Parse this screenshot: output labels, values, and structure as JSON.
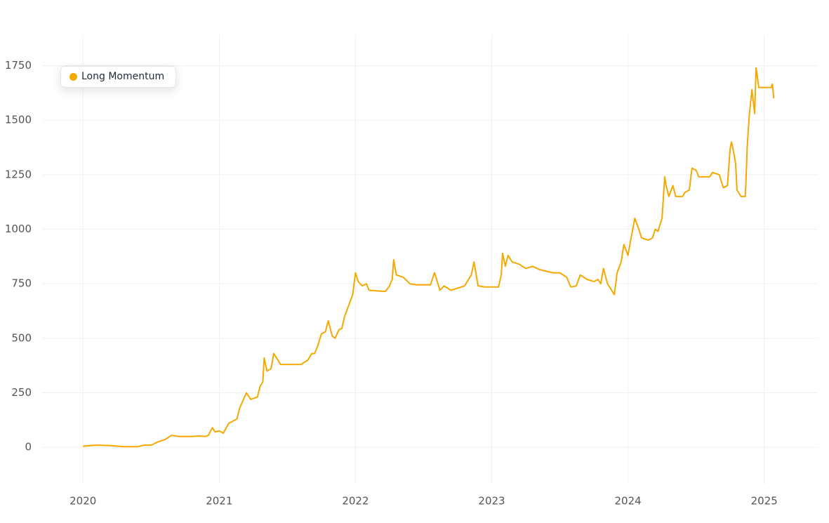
{
  "chart_data": {
    "type": "line",
    "series": [
      {
        "name": "Long Momentum",
        "color": "#f5a800",
        "x": [
          2020.0,
          2020.1,
          2020.2,
          2020.3,
          2020.4,
          2020.45,
          2020.5,
          2020.55,
          2020.6,
          2020.65,
          2020.7,
          2020.8,
          2020.85,
          2020.9,
          2020.92,
          2020.95,
          2020.97,
          2021.0,
          2021.03,
          2021.07,
          2021.1,
          2021.13,
          2021.15,
          2021.2,
          2021.23,
          2021.28,
          2021.3,
          2021.32,
          2021.33,
          2021.35,
          2021.38,
          2021.4,
          2021.43,
          2021.45,
          2021.6,
          2021.65,
          2021.68,
          2021.7,
          2021.72,
          2021.75,
          2021.78,
          2021.8,
          2021.83,
          2021.85,
          2021.88,
          2021.9,
          2021.92,
          2021.95,
          2021.98,
          2022.0,
          2022.02,
          2022.05,
          2022.08,
          2022.1,
          2022.2,
          2022.22,
          2022.25,
          2022.27,
          2022.28,
          2022.3,
          2022.35,
          2022.4,
          2022.45,
          2022.55,
          2022.58,
          2022.6,
          2022.62,
          2022.65,
          2022.7,
          2022.75,
          2022.8,
          2022.85,
          2022.87,
          2022.9,
          2022.95,
          2023.0,
          2023.05,
          2023.07,
          2023.08,
          2023.1,
          2023.12,
          2023.15,
          2023.2,
          2023.25,
          2023.3,
          2023.35,
          2023.45,
          2023.5,
          2023.55,
          2023.58,
          2023.62,
          2023.65,
          2023.7,
          2023.75,
          2023.78,
          2023.8,
          2023.82,
          2023.85,
          2023.88,
          2023.9,
          2023.92,
          2023.95,
          2023.97,
          2024.0,
          2024.02,
          2024.05,
          2024.08,
          2024.1,
          2024.15,
          2024.18,
          2024.2,
          2024.22,
          2024.25,
          2024.27,
          2024.28,
          2024.3,
          2024.33,
          2024.35,
          2024.4,
          2024.42,
          2024.45,
          2024.47,
          2024.5,
          2024.52,
          2024.6,
          2024.62,
          2024.67,
          2024.7,
          2024.73,
          2024.75,
          2024.76,
          2024.78,
          2024.79,
          2024.8,
          2024.83,
          2024.86,
          2024.865,
          2024.875,
          2024.89,
          2024.91,
          2024.93,
          2024.94,
          2024.96,
          2025.05,
          2025.06,
          2025.07
        ],
        "values": [
          5,
          10,
          8,
          3,
          3,
          10,
          10,
          25,
          35,
          55,
          50,
          50,
          52,
          50,
          55,
          90,
          70,
          75,
          65,
          110,
          120,
          130,
          180,
          250,
          220,
          230,
          280,
          300,
          410,
          350,
          360,
          430,
          400,
          380,
          380,
          400,
          430,
          430,
          460,
          520,
          530,
          580,
          510,
          500,
          540,
          545,
          600,
          650,
          700,
          800,
          760,
          740,
          750,
          720,
          715,
          715,
          740,
          770,
          860,
          790,
          780,
          750,
          745,
          745,
          800,
          760,
          720,
          740,
          720,
          730,
          740,
          790,
          850,
          740,
          735,
          735,
          735,
          790,
          890,
          830,
          880,
          850,
          840,
          820,
          830,
          815,
          800,
          800,
          780,
          735,
          740,
          790,
          770,
          760,
          770,
          750,
          820,
          750,
          720,
          700,
          800,
          850,
          930,
          880,
          950,
          1050,
          1000,
          960,
          950,
          960,
          1000,
          990,
          1050,
          1240,
          1200,
          1150,
          1200,
          1150,
          1150,
          1170,
          1180,
          1280,
          1270,
          1240,
          1240,
          1260,
          1250,
          1190,
          1200,
          1370,
          1400,
          1340,
          1300,
          1180,
          1150,
          1150,
          1200,
          1380,
          1520,
          1640,
          1530,
          1740,
          1650,
          1650,
          1665,
          1600
        ]
      }
    ],
    "xlim": [
      2019.7,
      2025.46
    ],
    "xticks": [
      2020,
      2021,
      2022,
      2023,
      2024,
      2025
    ],
    "ylim": [
      -170,
      1890
    ],
    "yticks": [
      0,
      250,
      500,
      750,
      1000,
      1250,
      1500,
      1750
    ],
    "grid": true,
    "legend": "upper left"
  }
}
